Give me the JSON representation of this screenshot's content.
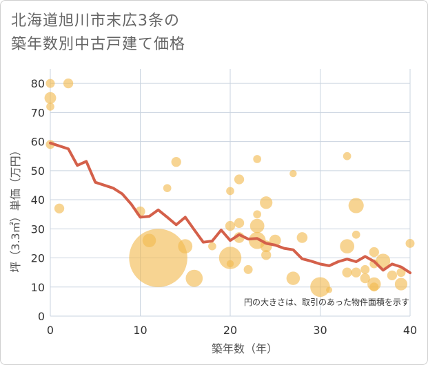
{
  "title": "北海道旭川市末広3条の\n築年数別中古戸建て価格",
  "chart_data": {
    "type": "scatter",
    "xlabel": "築年数（年）",
    "ylabel": "坪（3.3㎡）単価（万円）",
    "xlim": [
      0,
      40
    ],
    "ylim": [
      0,
      85
    ],
    "xticks": [
      0,
      10,
      20,
      30,
      40
    ],
    "yticks": [
      0,
      10,
      20,
      30,
      40,
      50,
      60,
      70,
      80
    ],
    "grid": true,
    "note": "円の大きさは、取引のあった物件面積を示す",
    "colors": {
      "bubble": "#f2b94f",
      "trend": "#d4604a",
      "grid": "#c9d3df"
    },
    "bubbles": [
      {
        "x": 0,
        "y": 80,
        "size": 1
      },
      {
        "x": 0,
        "y": 75,
        "size": 1.3
      },
      {
        "x": 0,
        "y": 72,
        "size": 0.9
      },
      {
        "x": 0,
        "y": 59,
        "size": 1
      },
      {
        "x": 2,
        "y": 80,
        "size": 1.1
      },
      {
        "x": 1,
        "y": 37,
        "size": 1.1
      },
      {
        "x": 10,
        "y": 36,
        "size": 1.1
      },
      {
        "x": 11,
        "y": 26,
        "size": 1.5
      },
      {
        "x": 12,
        "y": 20,
        "size": 6.5
      },
      {
        "x": 13,
        "y": 44,
        "size": 0.9
      },
      {
        "x": 14,
        "y": 53,
        "size": 1.1
      },
      {
        "x": 15,
        "y": 24,
        "size": 1.6
      },
      {
        "x": 16,
        "y": 13,
        "size": 1.9
      },
      {
        "x": 18,
        "y": 24,
        "size": 0.9
      },
      {
        "x": 20,
        "y": 43,
        "size": 0.9
      },
      {
        "x": 20,
        "y": 31,
        "size": 1.1
      },
      {
        "x": 20,
        "y": 20,
        "size": 2.5
      },
      {
        "x": 20,
        "y": 18,
        "size": 0.8
      },
      {
        "x": 21,
        "y": 47,
        "size": 1.1
      },
      {
        "x": 21,
        "y": 32,
        "size": 1.1
      },
      {
        "x": 21,
        "y": 27,
        "size": 1.2
      },
      {
        "x": 22,
        "y": 16,
        "size": 1
      },
      {
        "x": 23,
        "y": 54,
        "size": 0.9
      },
      {
        "x": 23,
        "y": 35,
        "size": 0.9
      },
      {
        "x": 23,
        "y": 31,
        "size": 1.6
      },
      {
        "x": 23,
        "y": 26,
        "size": 1.9
      },
      {
        "x": 24,
        "y": 39,
        "size": 1.4
      },
      {
        "x": 24,
        "y": 24,
        "size": 1.3
      },
      {
        "x": 24,
        "y": 21,
        "size": 1.1
      },
      {
        "x": 25,
        "y": 26,
        "size": 1.3
      },
      {
        "x": 27,
        "y": 49,
        "size": 0.8
      },
      {
        "x": 27,
        "y": 13,
        "size": 1.5
      },
      {
        "x": 28,
        "y": 27,
        "size": 1.2
      },
      {
        "x": 30,
        "y": 10,
        "size": 2.2
      },
      {
        "x": 31,
        "y": 9,
        "size": 0.7
      },
      {
        "x": 33,
        "y": 55,
        "size": 0.9
      },
      {
        "x": 33,
        "y": 24,
        "size": 1.6
      },
      {
        "x": 33,
        "y": 15,
        "size": 1.1
      },
      {
        "x": 34,
        "y": 38,
        "size": 1.7
      },
      {
        "x": 34,
        "y": 28,
        "size": 0.9
      },
      {
        "x": 34,
        "y": 15,
        "size": 1.1
      },
      {
        "x": 35,
        "y": 16,
        "size": 1
      },
      {
        "x": 35,
        "y": 13,
        "size": 1.1
      },
      {
        "x": 36,
        "y": 22,
        "size": 1.1
      },
      {
        "x": 36,
        "y": 18,
        "size": 1
      },
      {
        "x": 36,
        "y": 11,
        "size": 1.5
      },
      {
        "x": 36,
        "y": 10,
        "size": 1
      },
      {
        "x": 37,
        "y": 19,
        "size": 1.6
      },
      {
        "x": 38,
        "y": 14,
        "size": 1.1
      },
      {
        "x": 39,
        "y": 15,
        "size": 1
      },
      {
        "x": 39,
        "y": 11,
        "size": 1.4
      },
      {
        "x": 40,
        "y": 25,
        "size": 1
      }
    ],
    "trend": {
      "x": [
        0,
        2,
        3,
        4,
        5,
        7,
        8,
        9,
        10,
        11,
        12,
        13,
        14,
        15,
        16,
        17,
        18,
        19,
        20,
        21,
        22,
        23,
        24,
        25,
        26,
        27,
        28,
        29,
        30,
        31,
        32,
        33,
        34,
        35,
        36,
        37,
        38,
        39,
        40
      ],
      "y": [
        59.5,
        57.5,
        51.8,
        53.2,
        46,
        44,
        42,
        38.5,
        34,
        34.3,
        36.5,
        34,
        31.4,
        34,
        29.7,
        25.4,
        25.8,
        29.6,
        26,
        28,
        26.5,
        26.7,
        25,
        24.4,
        23.3,
        22.8,
        19.7,
        18.9,
        17.9,
        17.3,
        18.7,
        19.6,
        18.7,
        20.5,
        18.8,
        15.8,
        17.9,
        16.9,
        14.9
      ]
    }
  }
}
